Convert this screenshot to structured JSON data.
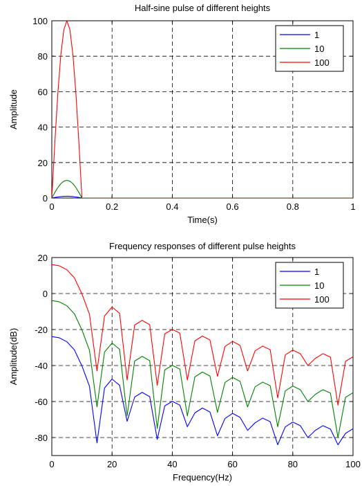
{
  "chart_data": [
    {
      "type": "line",
      "title": "Half-sine pulse of different heights",
      "xlabel": "Time(s)",
      "ylabel": "Amplitude",
      "xlim": [
        0,
        1
      ],
      "ylim": [
        0,
        100
      ],
      "xticks": [
        0,
        0.2,
        0.4,
        0.6,
        0.8,
        1
      ],
      "xtick_labels": [
        "0",
        "0.2",
        "0.4",
        "0.6",
        "0.8",
        "1"
      ],
      "yticks": [
        0,
        20,
        40,
        60,
        80,
        100
      ],
      "ytick_labels": [
        "0",
        "20",
        "40",
        "60",
        "80",
        "100"
      ],
      "grid": true,
      "legend_position": "top-right",
      "series": [
        {
          "name": "1",
          "color": "#0000ff",
          "x": [
            0,
            0.01,
            0.02,
            0.03,
            0.04,
            0.05,
            0.06,
            0.07,
            0.08,
            0.09,
            0.1,
            0.2,
            0.4,
            0.6,
            0.8,
            1.0
          ],
          "y": [
            0,
            0.31,
            0.59,
            0.81,
            0.95,
            1.0,
            0.95,
            0.81,
            0.59,
            0.31,
            0,
            0,
            0,
            0,
            0,
            0
          ]
        },
        {
          "name": "10",
          "color": "#008000",
          "x": [
            0,
            0.01,
            0.02,
            0.03,
            0.04,
            0.05,
            0.06,
            0.07,
            0.08,
            0.09,
            0.1,
            0.2,
            0.4,
            0.6,
            0.8,
            1.0
          ],
          "y": [
            0,
            3.1,
            5.9,
            8.1,
            9.5,
            10,
            9.5,
            8.1,
            5.9,
            3.1,
            0,
            0,
            0,
            0,
            0,
            0
          ]
        },
        {
          "name": "100",
          "color": "#ff0000",
          "x": [
            0,
            0.01,
            0.02,
            0.03,
            0.04,
            0.05,
            0.06,
            0.07,
            0.08,
            0.09,
            0.1,
            0.2,
            0.4,
            0.6,
            0.8,
            1.0
          ],
          "y": [
            0,
            31,
            59,
            81,
            95,
            100,
            95,
            81,
            59,
            31,
            0,
            0,
            0,
            0,
            0,
            0
          ]
        }
      ]
    },
    {
      "type": "line",
      "title": "Frequency responses of different pulse heights",
      "xlabel": "Frequency(Hz)",
      "ylabel": "Amplitude(dB)",
      "xlim": [
        0,
        100
      ],
      "ylim": [
        -90,
        20
      ],
      "xticks": [
        0,
        20,
        40,
        60,
        80,
        100
      ],
      "xtick_labels": [
        "0",
        "20",
        "40",
        "60",
        "80",
        "100"
      ],
      "yticks": [
        -80,
        -60,
        -40,
        -20,
        0,
        20
      ],
      "ytick_labels": [
        "-80",
        "-60",
        "-40",
        "-20",
        "0",
        "20"
      ],
      "grid": true,
      "legend_position": "top-right",
      "series": [
        {
          "name": "1",
          "color": "#0000ff",
          "x": [
            0,
            2.5,
            5,
            7.5,
            10,
            12.5,
            15,
            17.5,
            20,
            22.5,
            25,
            27.5,
            30,
            32.5,
            35,
            37.5,
            40,
            42.5,
            45,
            47.5,
            50,
            52.5,
            55,
            57.5,
            60,
            62.5,
            65,
            67.5,
            70,
            72.5,
            75,
            77.5,
            80,
            82.5,
            85,
            87.5,
            90,
            92.5,
            95,
            97.5,
            100
          ],
          "y": [
            -23.9,
            -24.6,
            -26.8,
            -31.3,
            -40.2,
            -51.5,
            -83,
            -52.5,
            -47.5,
            -51,
            -71,
            -57.5,
            -54.9,
            -57.3,
            -81,
            -62.4,
            -59.9,
            -62,
            -74,
            -66.3,
            -63.6,
            -65.8,
            -79,
            -69.4,
            -66.6,
            -68.8,
            -76,
            -71.8,
            -69.2,
            -71.2,
            -84,
            -74.1,
            -71.4,
            -73.4,
            -80,
            -76,
            -73.4,
            -75.3,
            -84,
            -77.7,
            -75.1
          ]
        },
        {
          "name": "10",
          "color": "#008000",
          "x": [
            0,
            2.5,
            5,
            7.5,
            10,
            12.5,
            15,
            17.5,
            20,
            22.5,
            25,
            27.5,
            30,
            32.5,
            35,
            37.5,
            40,
            42.5,
            45,
            47.5,
            50,
            52.5,
            55,
            57.5,
            60,
            62.5,
            65,
            67.5,
            70,
            72.5,
            75,
            77.5,
            80,
            82.5,
            85,
            87.5,
            90,
            92.5,
            95,
            97.5,
            100
          ],
          "y": [
            -3.9,
            -4.6,
            -6.8,
            -11.3,
            -20.2,
            -31.5,
            -63,
            -32.5,
            -27.5,
            -31,
            -68,
            -37.5,
            -34.9,
            -37.3,
            -75,
            -42.4,
            -39.9,
            -42,
            -68,
            -46.3,
            -43.6,
            -45.8,
            -66,
            -49.4,
            -46.6,
            -48.8,
            -63,
            -51.8,
            -49.2,
            -51.2,
            -74,
            -54.1,
            -51.4,
            -53.4,
            -60,
            -56,
            -53.4,
            -55.3,
            -80,
            -57.7,
            -55.1
          ]
        },
        {
          "name": "100",
          "color": "#ff0000",
          "x": [
            0,
            2.5,
            5,
            7.5,
            10,
            12.5,
            15,
            17.5,
            20,
            22.5,
            25,
            27.5,
            30,
            32.5,
            35,
            37.5,
            40,
            42.5,
            45,
            47.5,
            50,
            52.5,
            55,
            57.5,
            60,
            62.5,
            65,
            67.5,
            70,
            72.5,
            75,
            77.5,
            80,
            82.5,
            85,
            87.5,
            90,
            92.5,
            95,
            97.5,
            100
          ],
          "y": [
            16.1,
            15.4,
            13.2,
            8.7,
            -0.2,
            -11.5,
            -43,
            -12.5,
            -7.5,
            -11,
            -48,
            -17.5,
            -14.9,
            -17.3,
            -51,
            -22.4,
            -19.9,
            -22,
            -48,
            -26.3,
            -23.6,
            -25.8,
            -46,
            -29.4,
            -26.6,
            -28.8,
            -43,
            -31.8,
            -29.2,
            -31.2,
            -58,
            -34.1,
            -31.4,
            -33.4,
            -40,
            -36,
            -33.4,
            -35.3,
            -62,
            -37.7,
            -35.1
          ]
        }
      ]
    }
  ]
}
